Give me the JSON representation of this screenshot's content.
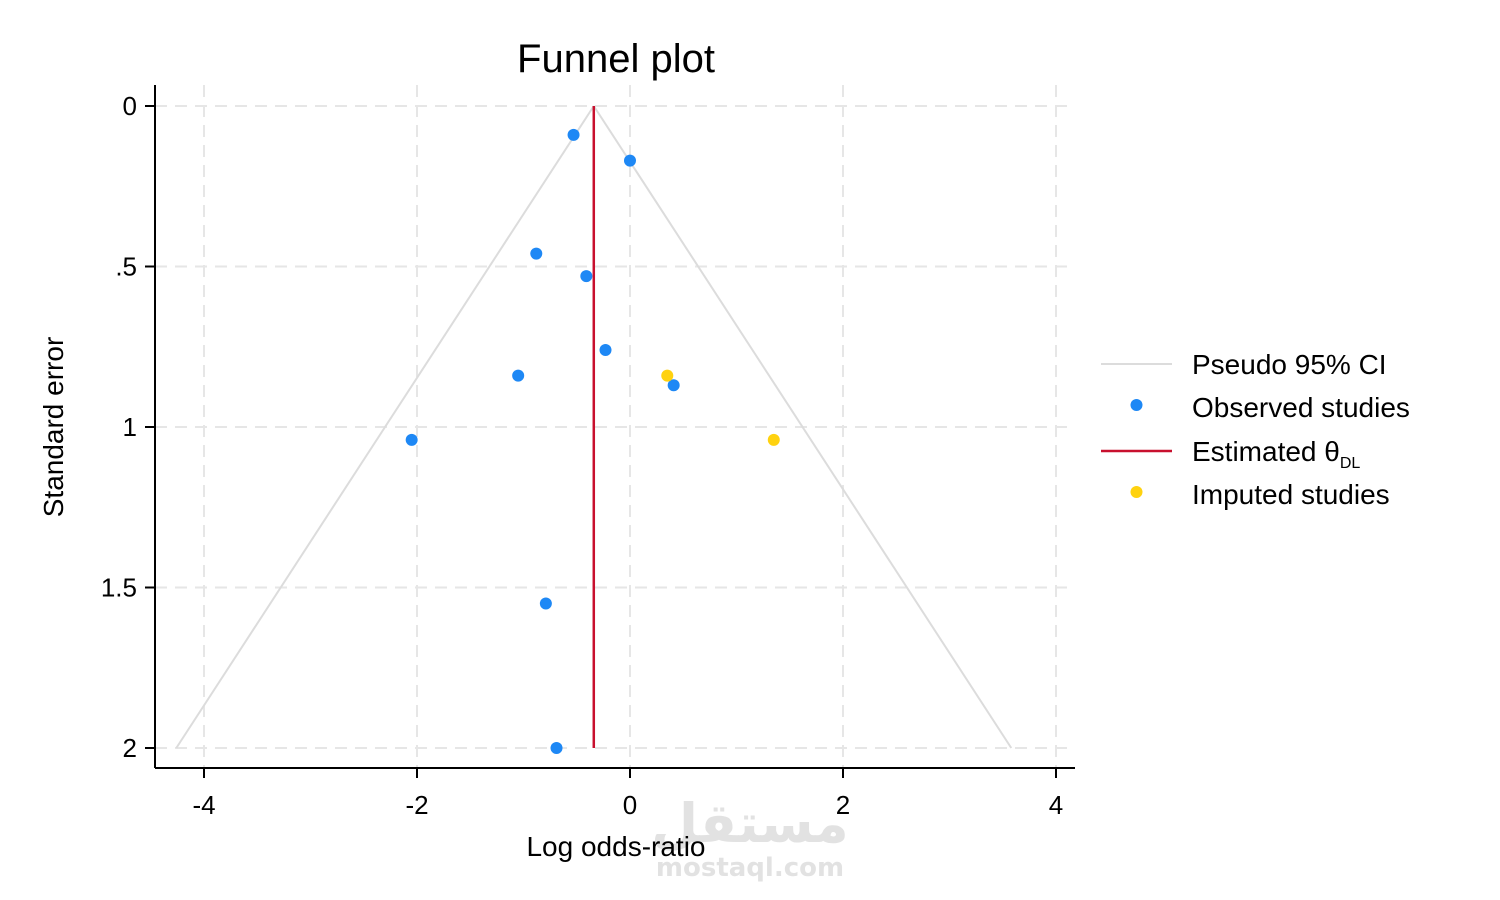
{
  "watermark": {
    "arabic": "مستقل",
    "latin": "mostaql.com"
  },
  "chart_data": {
    "type": "scatter",
    "title": "Funnel plot",
    "xlabel": "Log odds-ratio",
    "ylabel": "Standard error",
    "xlim": [
      -4.45,
      4.2
    ],
    "ylim": [
      0,
      2.065
    ],
    "y_reversed": true,
    "grid": true,
    "legend_position": "right",
    "x_ticks": [
      -4,
      -2,
      0,
      2,
      4
    ],
    "x_tick_labels": [
      "-4",
      "-2",
      "0",
      "2",
      "4"
    ],
    "y_ticks": [
      0,
      0.5,
      1,
      1.5,
      2
    ],
    "y_tick_labels": [
      "0",
      ".5",
      "1",
      "1.5",
      "2"
    ],
    "estimate": -0.34,
    "pseudo_ci": {
      "color": "#dcdcdc",
      "apex": [
        -0.34,
        0
      ],
      "left_base": [
        -4.26,
        2
      ],
      "right_base": [
        3.58,
        2
      ]
    },
    "series": [
      {
        "name": "Observed studies",
        "color": "#1e88f5",
        "points": [
          {
            "x": -0.53,
            "y": 0.09
          },
          {
            "x": 0.0,
            "y": 0.17
          },
          {
            "x": -0.88,
            "y": 0.46
          },
          {
            "x": -0.41,
            "y": 0.53
          },
          {
            "x": -0.23,
            "y": 0.76
          },
          {
            "x": -1.05,
            "y": 0.84
          },
          {
            "x": 0.41,
            "y": 0.87
          },
          {
            "x": -2.05,
            "y": 1.04
          },
          {
            "x": -0.79,
            "y": 1.55
          },
          {
            "x": -0.69,
            "y": 2.0
          }
        ]
      },
      {
        "name": "Imputed studies",
        "color": "#ffd20f",
        "points": [
          {
            "x": 0.35,
            "y": 0.84
          },
          {
            "x": 1.35,
            "y": 1.04
          }
        ]
      }
    ],
    "legend": {
      "items": [
        {
          "key": "ci",
          "label": "Pseudo 95% CI",
          "symbol": "line",
          "color": "#dcdcdc"
        },
        {
          "key": "observed",
          "label": "Observed studies",
          "symbol": "dot",
          "color": "#1e88f5"
        },
        {
          "key": "estimated",
          "label": "Estimated θ",
          "subscript": "DL",
          "symbol": "line",
          "color": "#c8102e"
        },
        {
          "key": "imputed",
          "label": "Imputed studies",
          "symbol": "dot",
          "color": "#ffd20f"
        }
      ]
    }
  }
}
